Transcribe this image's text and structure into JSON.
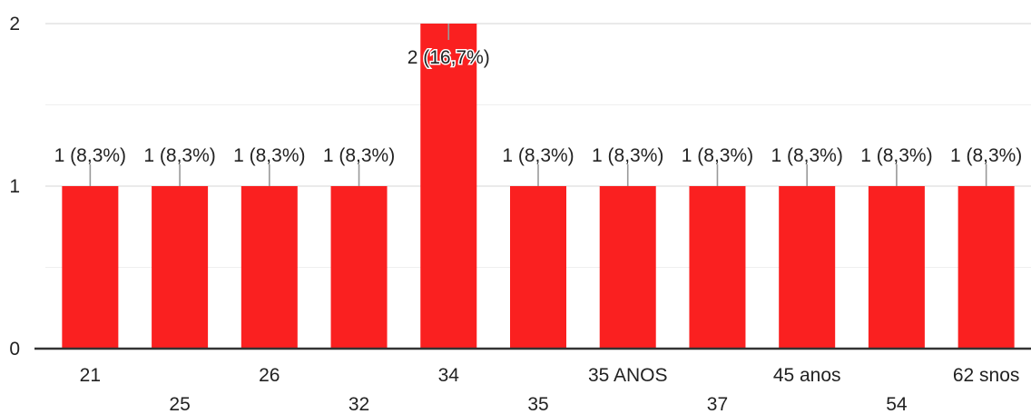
{
  "chart_data": {
    "type": "bar",
    "categories": [
      "21",
      "25",
      "26",
      "32",
      "34",
      "35",
      "35 ANOS",
      "37",
      "45 anos",
      "54",
      "62 snos"
    ],
    "values": [
      1,
      1,
      1,
      1,
      2,
      1,
      1,
      1,
      1,
      1,
      1
    ],
    "data_labels": [
      "1 (8,3%)",
      "1 (8,3%)",
      "1 (8,3%)",
      "1 (8,3%)",
      "2 (16,7%)",
      "1 (8,3%)",
      "1 (8,3%)",
      "1 (8,3%)",
      "1 (8,3%)",
      "1 (8,3%)",
      "1 (8,3%)"
    ],
    "ylim": [
      0,
      2
    ],
    "yticks": [
      "0",
      "1",
      "2"
    ],
    "grid": true,
    "bar_color": "#fa2020"
  }
}
